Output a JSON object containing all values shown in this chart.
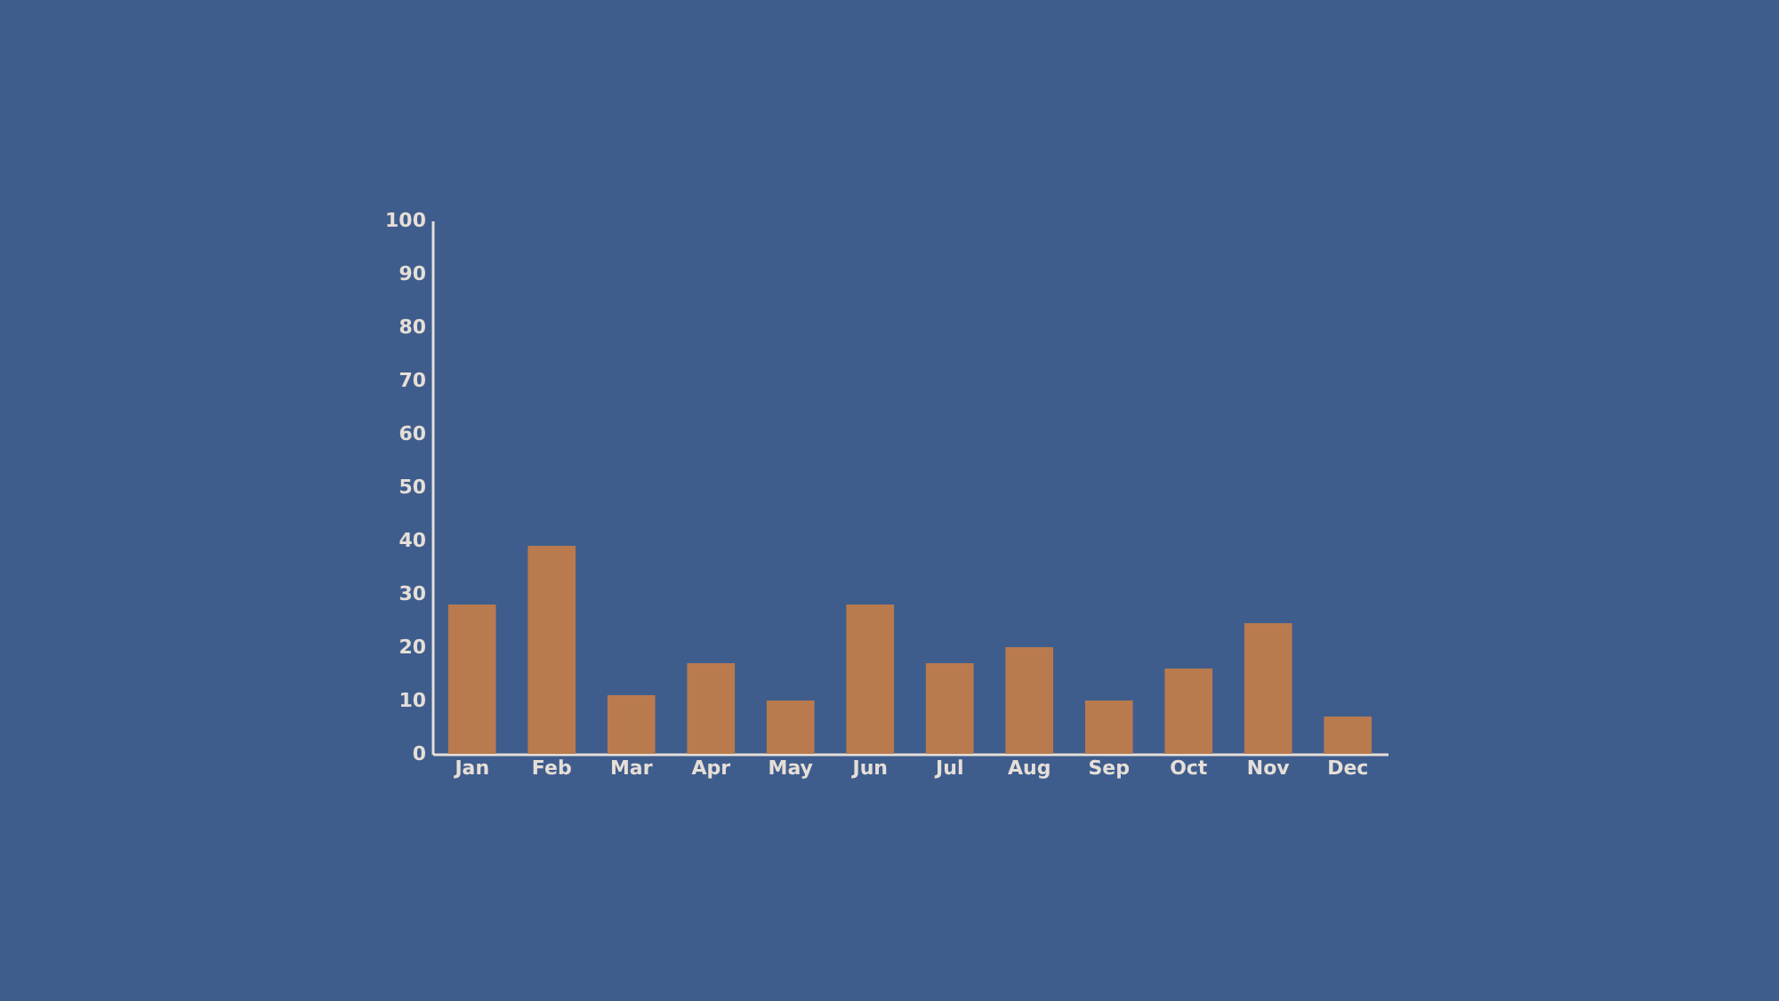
{
  "chart_data": {
    "type": "bar",
    "categories": [
      "Jan",
      "Feb",
      "Mar",
      "Apr",
      "May",
      "Jun",
      "Jul",
      "Aug",
      "Sep",
      "Oct",
      "Nov",
      "Dec"
    ],
    "values": [
      28,
      39,
      11,
      17,
      10,
      28,
      17,
      20,
      10,
      16,
      24.5,
      7
    ],
    "color": "#b97a4e",
    "ylim": [
      0,
      100
    ],
    "yticks": [
      0,
      10,
      20,
      30,
      40,
      50,
      60,
      70,
      80,
      90,
      100
    ],
    "grid": false
  }
}
